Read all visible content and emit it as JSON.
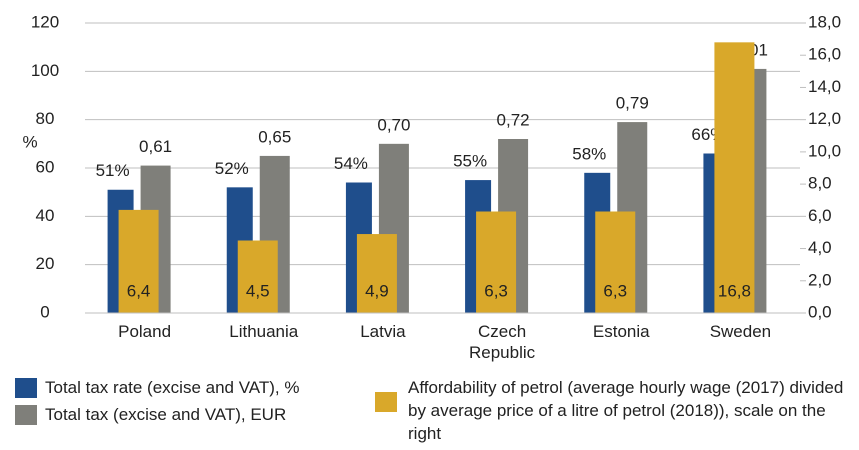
{
  "chart_data": {
    "type": "bar",
    "ylabel": "%",
    "categories": [
      "Poland",
      "Lithuania",
      "Latvia",
      "Czech Republic",
      "Estonia",
      "Sweden"
    ],
    "ylim": [
      0,
      120
    ],
    "yticks": [
      0,
      20,
      40,
      60,
      80,
      100,
      120
    ],
    "y2lim": [
      0,
      18
    ],
    "y2ticks": [
      {
        "value": 0,
        "label": "0,0"
      },
      {
        "value": 2,
        "label": "2,0"
      },
      {
        "value": 4,
        "label": "4,0"
      },
      {
        "value": 6,
        "label": "6,0"
      },
      {
        "value": 8,
        "label": "8,0"
      },
      {
        "value": 10,
        "label": "10,0"
      },
      {
        "value": 12,
        "label": "12,0"
      },
      {
        "value": 14,
        "label": "14,0"
      },
      {
        "value": 16,
        "label": "16,0"
      },
      {
        "value": 18,
        "label": "18,0"
      }
    ],
    "grid": true,
    "legend": "bottom",
    "series": [
      {
        "name": "Total tax rate (excise and VAT), %",
        "color": "#1f4e8c",
        "values": [
          51,
          52,
          54,
          55,
          58,
          66
        ],
        "value_labels": [
          "51%",
          "52%",
          "54%",
          "55%",
          "58%",
          "66%"
        ]
      },
      {
        "name": "Total tax (excise and VAT), EUR",
        "color": "#7f7f7a",
        "values": [
          61,
          65,
          70,
          72,
          79,
          101
        ],
        "value_labels": [
          "0,61",
          "0,65",
          "0,70",
          "0,72",
          "0,79",
          "1,01"
        ]
      },
      {
        "name": "Affordability of petrol (average hourly wage (2017) divided by average price of a litre of petrol (2018)), scale on the right",
        "color": "#d9a82a",
        "axis": "y2",
        "values": [
          6.4,
          4.5,
          4.9,
          6.3,
          6.3,
          16.8
        ],
        "value_labels": [
          "6,4",
          "4,5",
          "4,9",
          "6,3",
          "6,3",
          "16,8"
        ]
      }
    ]
  }
}
